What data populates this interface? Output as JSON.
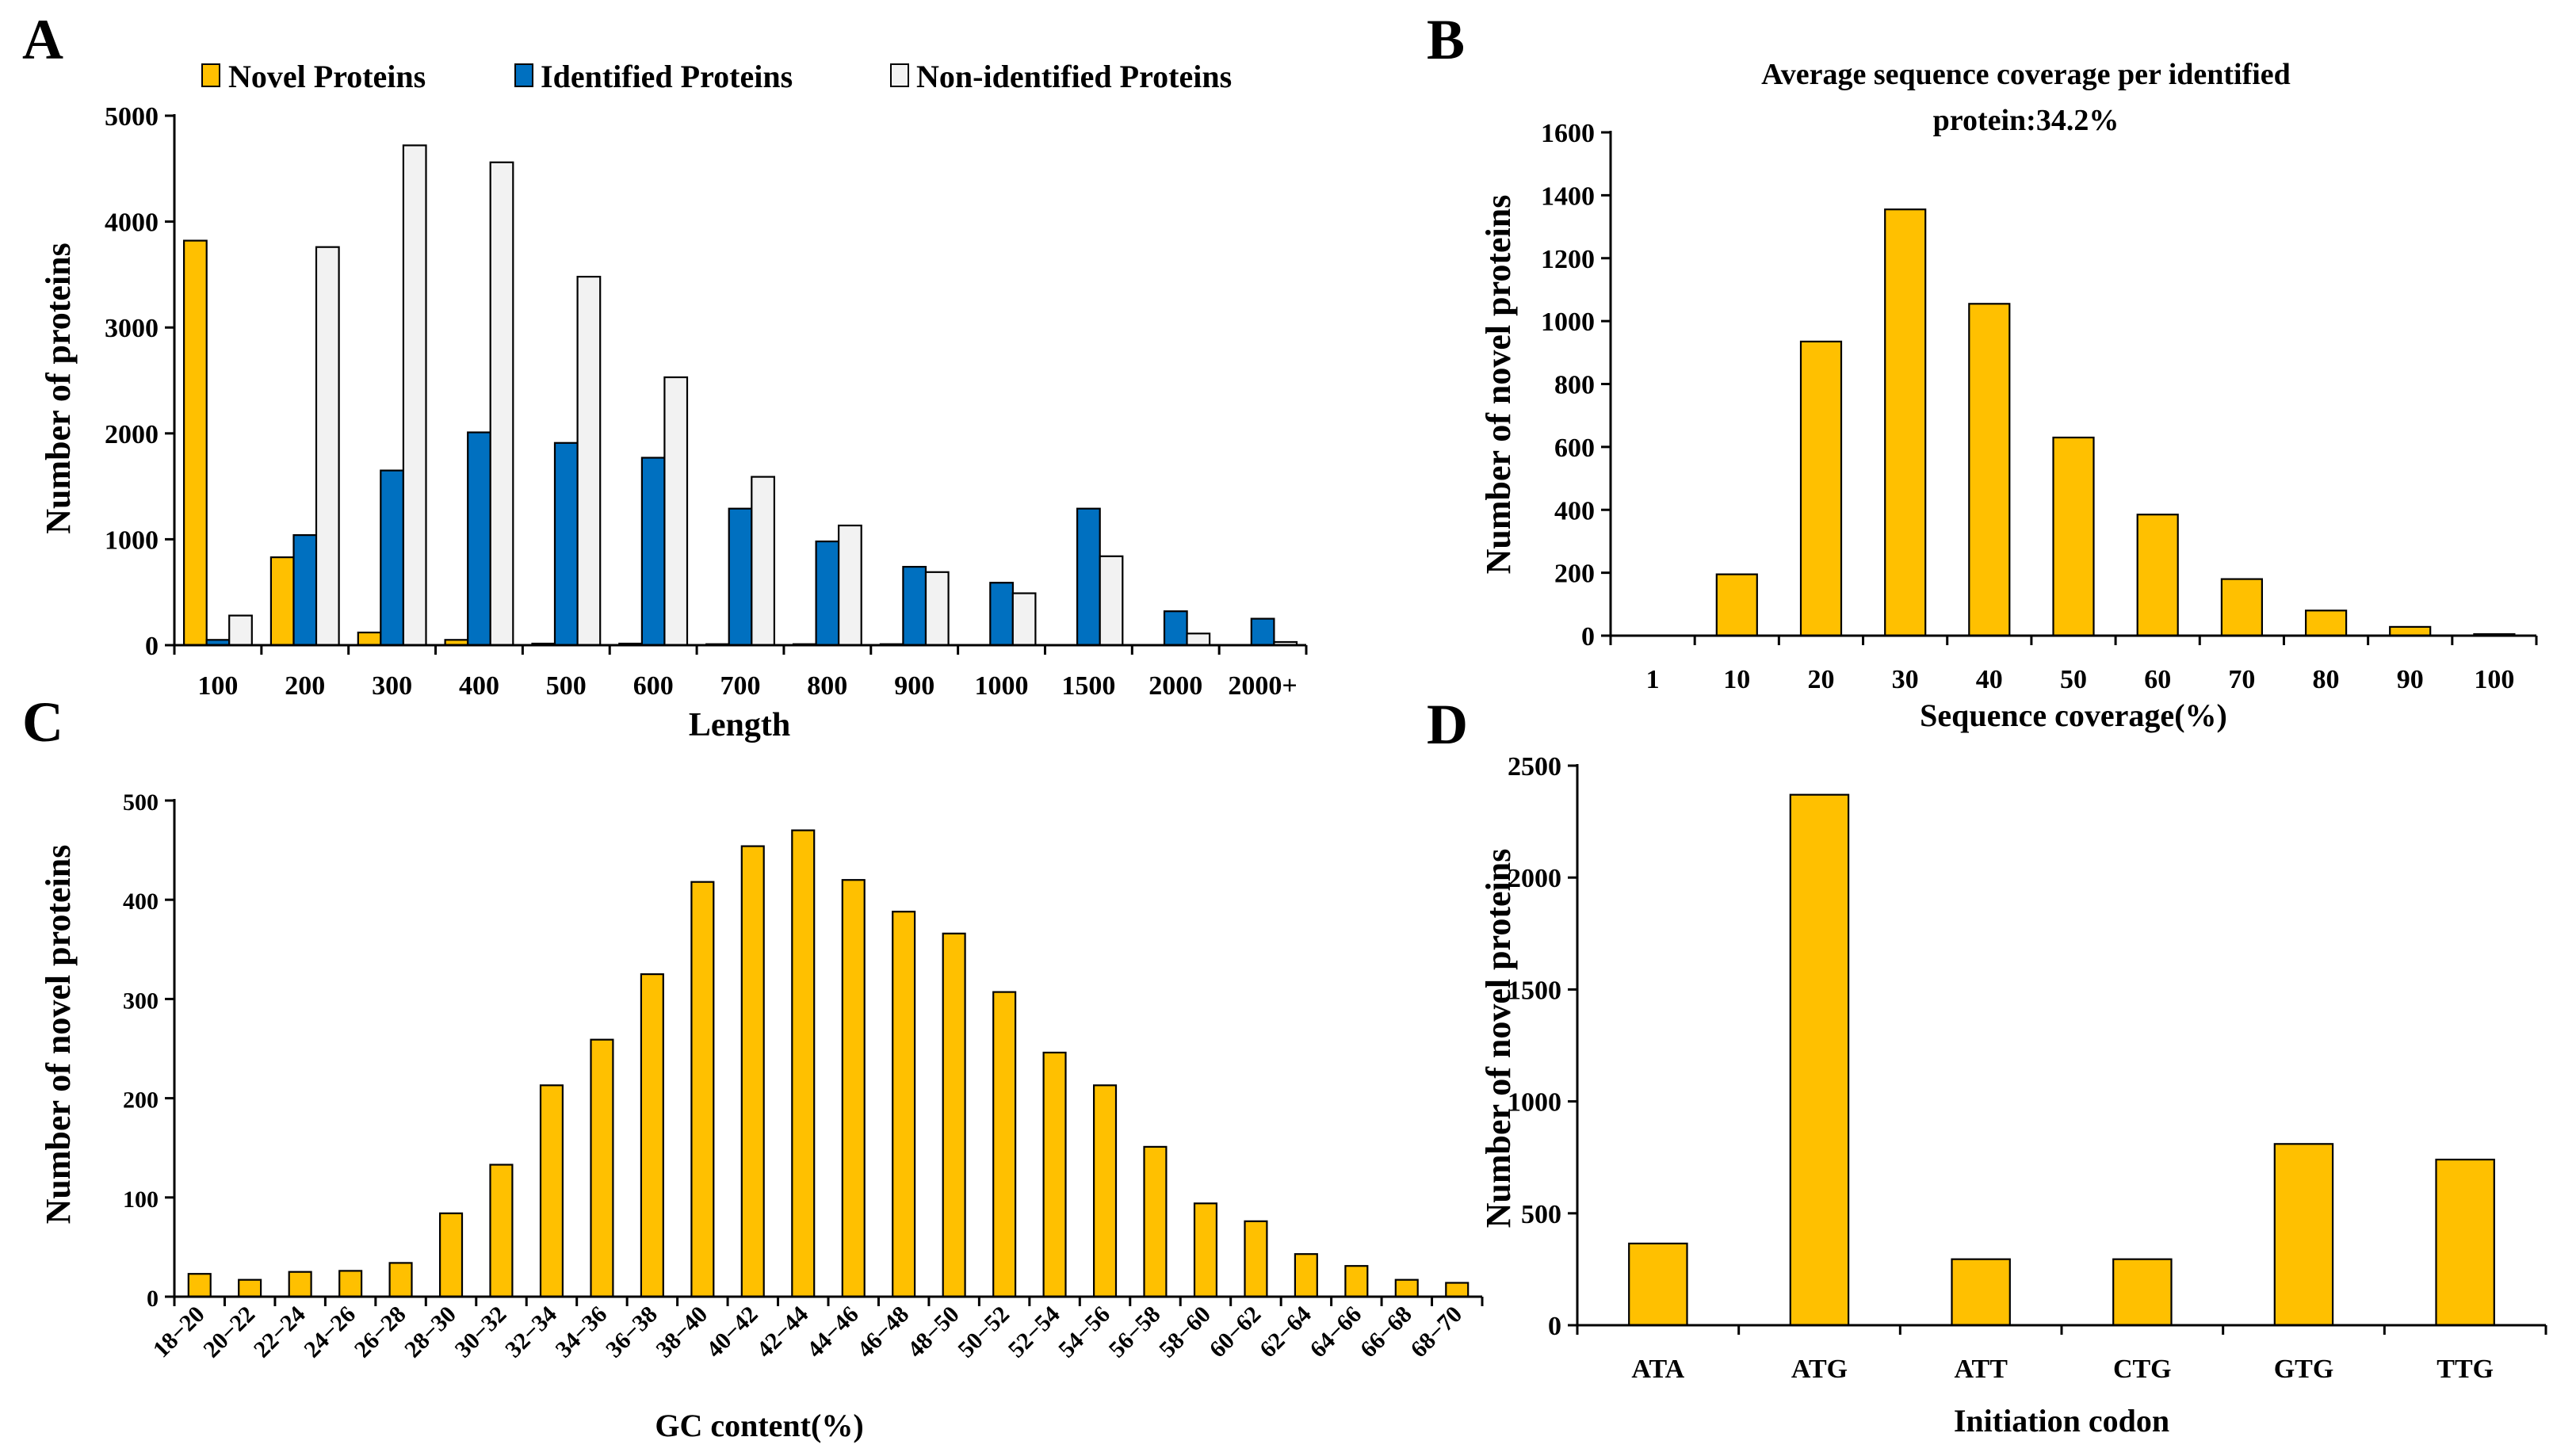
{
  "chart_data": [
    {
      "panel_label": "A",
      "type": "bar",
      "title": "",
      "xlabel": "Length",
      "ylabel": "Number of proteins",
      "ylim": [
        0,
        5000
      ],
      "yticks": [
        0,
        1000,
        2000,
        3000,
        4000,
        5000
      ],
      "categories": [
        "100",
        "200",
        "300",
        "400",
        "500",
        "600",
        "700",
        "800",
        "900",
        "1000",
        "1500",
        "2000",
        "2000+"
      ],
      "legend_position": "top",
      "series": [
        {
          "name": "Novel Proteins",
          "color": "#FFC000",
          "values": [
            3820,
            830,
            120,
            50,
            15,
            15,
            10,
            10,
            10,
            0,
            0,
            0,
            0
          ]
        },
        {
          "name": "Identified Proteins",
          "color": "#0070C0",
          "values": [
            50,
            1040,
            1650,
            2010,
            1910,
            1770,
            1290,
            980,
            740,
            590,
            1290,
            320,
            250
          ]
        },
        {
          "name": "Non-identified Proteins",
          "color": "#F2F2F2",
          "values": [
            280,
            3760,
            4720,
            4560,
            3480,
            2530,
            1590,
            1130,
            690,
            490,
            840,
            110,
            30
          ]
        }
      ]
    },
    {
      "panel_label": "B",
      "type": "bar",
      "title": "Average sequence coverage per identified protein:34.2%",
      "xlabel": "Sequence coverage(%)",
      "ylabel": "Number of novel proteins",
      "ylim": [
        0,
        1600
      ],
      "yticks": [
        0,
        200,
        400,
        600,
        800,
        1000,
        1200,
        1400,
        1600
      ],
      "categories": [
        "1",
        "10",
        "20",
        "30",
        "40",
        "50",
        "60",
        "70",
        "80",
        "90",
        "100"
      ],
      "series": [
        {
          "name": "Novel proteins",
          "color": "#FFC000",
          "values": [
            0,
            195,
            935,
            1355,
            1055,
            630,
            385,
            180,
            80,
            28,
            5
          ]
        }
      ]
    },
    {
      "panel_label": "C",
      "type": "bar",
      "title": "",
      "xlabel": "GC content(%)",
      "ylabel": "Number of novel proteins",
      "ylim": [
        0,
        500
      ],
      "yticks": [
        0,
        100,
        200,
        300,
        400,
        500
      ],
      "categories": [
        "18−20",
        "20−22",
        "22−24",
        "24−26",
        "26−28",
        "28−30",
        "30−32",
        "32−34",
        "34−36",
        "36−38",
        "38−40",
        "40−42",
        "42−44",
        "44−46",
        "46−48",
        "48−50",
        "50−52",
        "52−54",
        "54−56",
        "56−58",
        "58−60",
        "60−62",
        "62−64",
        "64−66",
        "66−68",
        "68−70"
      ],
      "series": [
        {
          "name": "Novel proteins",
          "color": "#FFC000",
          "values": [
            23,
            17,
            25,
            26,
            34,
            84,
            133,
            213,
            259,
            325,
            418,
            454,
            470,
            420,
            388,
            366,
            307,
            246,
            213,
            151,
            94,
            76,
            43,
            31,
            17,
            14
          ]
        }
      ]
    },
    {
      "panel_label": "D",
      "type": "bar",
      "title": "",
      "xlabel": "Initiation codon",
      "ylabel": "Number of novel proteins",
      "ylim": [
        0,
        2500
      ],
      "yticks": [
        0,
        500,
        1000,
        1500,
        2000,
        2500
      ],
      "categories": [
        "ATA",
        "ATG",
        "ATT",
        "CTG",
        "GTG",
        "TTG"
      ],
      "series": [
        {
          "name": "Novel proteins",
          "color": "#FFC000",
          "values": [
            365,
            2370,
            295,
            295,
            810,
            740
          ]
        }
      ]
    }
  ]
}
